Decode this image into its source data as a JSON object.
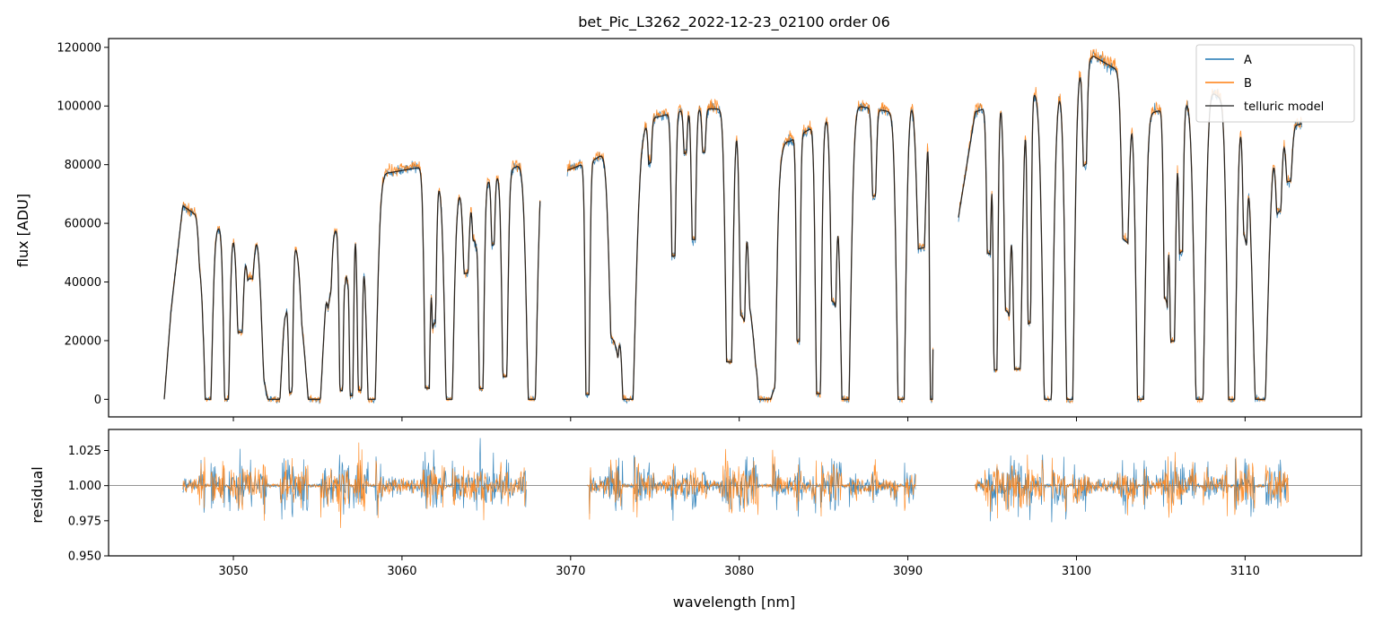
{
  "chart_data": [
    {
      "type": "line",
      "title": "bet_Pic_L3262_2022-12-23_02100  order 06",
      "xlabel": "",
      "ylabel": "flux [ADU]",
      "xlim": [
        3042.6,
        3116.9
      ],
      "ylim": [
        -6000,
        123000
      ],
      "yticks": [
        0,
        20000,
        40000,
        60000,
        80000,
        100000,
        120000
      ],
      "legend_position": "top-right",
      "colors": {
        "A": "#1f77b4",
        "B": "#ff7f0e",
        "telluric": "#444444"
      },
      "segments": [
        [
          3045.9,
          3068.2
        ],
        [
          3069.8,
          3091.5
        ],
        [
          3093.0,
          3113.4
        ]
      ],
      "continuum": {
        "x": [
          3045.9,
          3046.3,
          3047.0,
          3048.0,
          3050.0,
          3052.0,
          3054.0,
          3056.0,
          3057.5,
          3059.0,
          3061.0,
          3063.0,
          3065.0,
          3067.0,
          3068.2,
          3069.8,
          3071.5,
          3073.0,
          3075.0,
          3077.0,
          3079.0,
          3081.0,
          3083.0,
          3085.0,
          3087.0,
          3089.0,
          3091.5,
          3093.0,
          3094.0,
          3095.0,
          3097.0,
          3099.0,
          3101.0,
          3102.5,
          3104.0,
          3106.0,
          3108.0,
          3110.0,
          3112.0,
          3113.4
        ],
        "y": [
          0,
          30000,
          66000,
          62000,
          56000,
          62000,
          53000,
          58000,
          64000,
          77000,
          79000,
          70000,
          74000,
          80000,
          85000,
          78000,
          82000,
          88000,
          96000,
          99000,
          99000,
          93000,
          88000,
          95000,
          100000,
          98000,
          105000,
          62000,
          98000,
          100000,
          104000,
          106000,
          117000,
          112000,
          97000,
          100000,
          105000,
          96000,
          92000,
          94000
        ]
      },
      "absorption_lines": [
        {
          "c": 3048.1,
          "w": 0.18,
          "d": 0.25
        },
        {
          "c": 3048.5,
          "w": 0.28,
          "d": 1.0
        },
        {
          "c": 3049.6,
          "w": 0.2,
          "d": 1.0
        },
        {
          "c": 3050.4,
          "w": 0.22,
          "d": 0.6
        },
        {
          "c": 3051.0,
          "w": 0.25,
          "d": 0.3
        },
        {
          "c": 3052.0,
          "w": 0.3,
          "d": 0.75
        },
        {
          "c": 3052.4,
          "w": 0.6,
          "d": 1.0
        },
        {
          "c": 3053.2,
          "w": 0.15,
          "d": 0.2
        },
        {
          "c": 3053.4,
          "w": 0.14,
          "d": 0.95
        },
        {
          "c": 3054.2,
          "w": 0.22,
          "d": 0.3
        },
        {
          "c": 3054.8,
          "w": 0.6,
          "d": 1.0
        },
        {
          "c": 3055.7,
          "w": 0.15,
          "d": 0.3
        },
        {
          "c": 3056.4,
          "w": 0.14,
          "d": 0.95
        },
        {
          "c": 3056.7,
          "w": 0.12,
          "d": 0.3
        },
        {
          "c": 3057.0,
          "w": 0.14,
          "d": 0.98
        },
        {
          "c": 3057.5,
          "w": 0.16,
          "d": 0.95
        },
        {
          "c": 3058.2,
          "w": 0.35,
          "d": 1.0
        },
        {
          "c": 3061.5,
          "w": 0.2,
          "d": 0.95
        },
        {
          "c": 3061.9,
          "w": 0.15,
          "d": 0.65
        },
        {
          "c": 3062.8,
          "w": 0.3,
          "d": 1.0
        },
        {
          "c": 3063.8,
          "w": 0.2,
          "d": 0.4
        },
        {
          "c": 3064.3,
          "w": 0.15,
          "d": 0.25
        },
        {
          "c": 3064.7,
          "w": 0.18,
          "d": 0.95
        },
        {
          "c": 3065.4,
          "w": 0.12,
          "d": 0.3
        },
        {
          "c": 3066.1,
          "w": 0.2,
          "d": 0.9
        },
        {
          "c": 3067.7,
          "w": 0.35,
          "d": 1.0
        },
        {
          "c": 3071.0,
          "w": 0.15,
          "d": 0.98
        },
        {
          "c": 3072.6,
          "w": 0.35,
          "d": 0.75
        },
        {
          "c": 3073.4,
          "w": 0.5,
          "d": 1.0
        },
        {
          "c": 3074.7,
          "w": 0.12,
          "d": 0.15
        },
        {
          "c": 3076.1,
          "w": 0.15,
          "d": 0.5
        },
        {
          "c": 3076.8,
          "w": 0.12,
          "d": 0.15
        },
        {
          "c": 3077.3,
          "w": 0.15,
          "d": 0.45
        },
        {
          "c": 3077.9,
          "w": 0.12,
          "d": 0.15
        },
        {
          "c": 3079.4,
          "w": 0.25,
          "d": 0.87
        },
        {
          "c": 3080.2,
          "w": 0.2,
          "d": 0.7
        },
        {
          "c": 3080.8,
          "w": 0.3,
          "d": 0.6
        },
        {
          "c": 3081.5,
          "w": 0.6,
          "d": 1.0
        },
        {
          "c": 3082.0,
          "w": 0.2,
          "d": 0.9
        },
        {
          "c": 3083.5,
          "w": 0.13,
          "d": 0.78
        },
        {
          "c": 3084.7,
          "w": 0.2,
          "d": 0.98
        },
        {
          "c": 3085.6,
          "w": 0.2,
          "d": 0.65
        },
        {
          "c": 3086.3,
          "w": 0.35,
          "d": 1.0
        },
        {
          "c": 3088.0,
          "w": 0.15,
          "d": 0.3
        },
        {
          "c": 3089.6,
          "w": 0.3,
          "d": 1.0
        },
        {
          "c": 3090.8,
          "w": 0.3,
          "d": 0.5
        },
        {
          "c": 3091.4,
          "w": 0.12,
          "d": 1.0
        },
        {
          "c": 3094.8,
          "w": 0.15,
          "d": 0.5
        },
        {
          "c": 3095.2,
          "w": 0.15,
          "d": 0.9
        },
        {
          "c": 3095.9,
          "w": 0.2,
          "d": 0.7
        },
        {
          "c": 3096.5,
          "w": 0.3,
          "d": 0.9
        },
        {
          "c": 3097.2,
          "w": 0.13,
          "d": 0.75
        },
        {
          "c": 3098.3,
          "w": 0.35,
          "d": 1.0
        },
        {
          "c": 3099.6,
          "w": 0.3,
          "d": 1.0
        },
        {
          "c": 3100.5,
          "w": 0.15,
          "d": 0.3
        },
        {
          "c": 3102.9,
          "w": 0.25,
          "d": 0.5
        },
        {
          "c": 3103.8,
          "w": 0.3,
          "d": 1.0
        },
        {
          "c": 3105.3,
          "w": 0.15,
          "d": 0.65
        },
        {
          "c": 3105.7,
          "w": 0.2,
          "d": 0.8
        },
        {
          "c": 3106.2,
          "w": 0.15,
          "d": 0.5
        },
        {
          "c": 3107.3,
          "w": 0.35,
          "d": 1.0
        },
        {
          "c": 3109.2,
          "w": 0.3,
          "d": 1.0
        },
        {
          "c": 3110.0,
          "w": 0.15,
          "d": 0.4
        },
        {
          "c": 3110.9,
          "w": 0.5,
          "d": 1.0
        },
        {
          "c": 3112.0,
          "w": 0.2,
          "d": 0.3
        },
        {
          "c": 3112.6,
          "w": 0.2,
          "d": 0.2
        }
      ],
      "series": [
        {
          "name": "A",
          "color": "#1f77b4"
        },
        {
          "name": "B",
          "color": "#ff7f0e"
        },
        {
          "name": "telluric model",
          "color": "#444444"
        }
      ]
    },
    {
      "type": "line",
      "xlabel": "wavelength [nm]",
      "ylabel": "residual",
      "xlim": [
        3042.6,
        3116.9
      ],
      "ylim": [
        0.95,
        1.04
      ],
      "xticks": [
        3050,
        3060,
        3070,
        3080,
        3090,
        3100,
        3110
      ],
      "yticks": [
        0.95,
        0.975,
        1.0,
        1.025
      ],
      "reference_line": 1.0,
      "segments": [
        [
          3047.0,
          3067.4
        ],
        [
          3071.0,
          3090.5
        ],
        [
          3094.0,
          3112.6
        ]
      ],
      "series": [
        {
          "name": "A",
          "color": "#1f77b4"
        },
        {
          "name": "B",
          "color": "#ff7f0e"
        }
      ]
    }
  ],
  "ticks_text": {
    "top_y": [
      "0",
      "20000",
      "40000",
      "60000",
      "80000",
      "100000",
      "120000"
    ],
    "bottom_y": [
      "0.950",
      "0.975",
      "1.000",
      "1.025"
    ],
    "bottom_x": [
      "3050",
      "3060",
      "3070",
      "3080",
      "3090",
      "3100",
      "3110"
    ]
  }
}
